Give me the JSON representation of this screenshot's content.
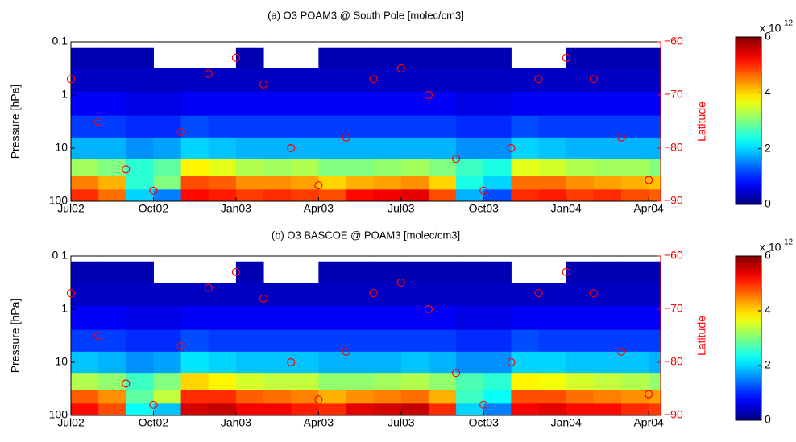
{
  "chart_data": [
    {
      "type": "heatmap",
      "title": "(a) O3 POAM3 @ South Pole [molec/cm3]",
      "y_label": "Pressure [hPa]",
      "y2_label": "Latitude",
      "x": [
        "Jul02",
        "Aug02",
        "Sep02",
        "Oct02",
        "Nov02",
        "Dec02",
        "Jan03",
        "Feb03",
        "Mar03",
        "Apr03",
        "May03",
        "Jun03",
        "Jul03",
        "Aug03",
        "Sep03",
        "Oct03",
        "Nov03",
        "Dec03",
        "Jan04",
        "Feb04",
        "Mar04",
        "Apr04"
      ],
      "xticks": [
        "Jul02",
        "Oct02",
        "Jan03",
        "Apr03",
        "Jul03",
        "Oct03",
        "Jan04",
        "Apr04"
      ],
      "ylim": [
        0.1,
        100
      ],
      "y_reversed": true,
      "log_y": true,
      "yticks": [
        0.1,
        1,
        10,
        100
      ],
      "y2lim": [
        -90,
        -60
      ],
      "y2ticks": [
        {
          "value": -90,
          "label": "−90"
        },
        {
          "value": -80,
          "label": "−80"
        },
        {
          "value": -70,
          "label": "−70"
        },
        {
          "value": -60,
          "label": "−60"
        }
      ],
      "levels": [
        0.2,
        0.5,
        1.5,
        4,
        10,
        25,
        45,
        80
      ],
      "z": [
        [
          0.3,
          0.3,
          0.3,
          null,
          null,
          null,
          0.3,
          null,
          null,
          0.3,
          0.3,
          0.3,
          0.3,
          0.3,
          0.3,
          0.3,
          null,
          null,
          0.3,
          0.3,
          0.3,
          0.3
        ],
        [
          0.4,
          0.4,
          0.4,
          0.4,
          0.4,
          0.4,
          0.4,
          0.4,
          0.4,
          0.4,
          0.4,
          0.4,
          0.4,
          0.4,
          0.4,
          0.4,
          0.4,
          0.4,
          0.4,
          0.4,
          0.4,
          0.4
        ],
        [
          0.7,
          0.7,
          0.6,
          0.6,
          0.7,
          0.7,
          0.7,
          0.7,
          0.7,
          0.7,
          0.7,
          0.7,
          0.7,
          0.7,
          0.6,
          0.6,
          0.7,
          0.7,
          0.7,
          0.7,
          0.7,
          0.7
        ],
        [
          1.1,
          1.1,
          1.0,
          1.0,
          1.2,
          1.1,
          1.1,
          1.1,
          1.1,
          1.1,
          1.1,
          1.1,
          1.1,
          1.1,
          1.0,
          1.0,
          1.2,
          1.1,
          1.1,
          1.1,
          1.1,
          1.1
        ],
        [
          1.8,
          1.8,
          1.6,
          1.7,
          2.0,
          1.9,
          1.8,
          1.8,
          1.8,
          1.8,
          1.8,
          1.8,
          1.8,
          1.8,
          1.6,
          1.6,
          2.0,
          1.9,
          1.8,
          1.8,
          1.8,
          1.8
        ],
        [
          3.2,
          3.0,
          2.5,
          2.8,
          3.8,
          3.6,
          3.3,
          3.2,
          3.3,
          3.0,
          3.0,
          3.1,
          3.2,
          3.0,
          2.6,
          2.4,
          3.6,
          3.5,
          3.3,
          3.2,
          3.2,
          3.0
        ],
        [
          4.5,
          4.2,
          2.5,
          3.0,
          4.8,
          4.7,
          4.4,
          4.4,
          4.3,
          4.0,
          4.2,
          4.3,
          4.4,
          4.0,
          2.4,
          2.0,
          4.6,
          4.6,
          4.4,
          4.3,
          4.2,
          4.1
        ],
        [
          5.0,
          4.6,
          2.0,
          1.5,
          5.2,
          5.1,
          4.9,
          5.0,
          4.9,
          4.8,
          5.2,
          5.3,
          5.4,
          4.8,
          1.8,
          1.2,
          5.0,
          5.1,
          4.9,
          5.0,
          4.8,
          4.7
        ]
      ],
      "colormap": "jet",
      "clim": [
        0,
        6
      ],
      "cticks": [
        0,
        2,
        4,
        6
      ],
      "c_multiplier": "x 10",
      "c_exponent": "12",
      "series": [
        {
          "color": "#ff0000",
          "axis": "y2",
          "values": [
            -67,
            -75,
            -84,
            -88,
            -77,
            -66,
            -63,
            -68,
            -80,
            -87,
            -78,
            -67,
            -65,
            -70,
            -82,
            -88,
            -80,
            -67,
            -63,
            -67,
            -78,
            -86
          ]
        }
      ]
    },
    {
      "type": "heatmap",
      "title": "(b) O3 BASCOE @ POAM3 [molec/cm3]",
      "y_label": "Pressure [hPa]",
      "y2_label": "Latitude",
      "x": [
        "Jul02",
        "Aug02",
        "Sep02",
        "Oct02",
        "Nov02",
        "Dec02",
        "Jan03",
        "Feb03",
        "Mar03",
        "Apr03",
        "May03",
        "Jun03",
        "Jul03",
        "Aug03",
        "Sep03",
        "Oct03",
        "Nov03",
        "Dec03",
        "Jan04",
        "Feb04",
        "Mar04",
        "Apr04"
      ],
      "xticks": [
        "Jul02",
        "Oct02",
        "Jan03",
        "Apr03",
        "Jul03",
        "Oct03",
        "Jan04",
        "Apr04"
      ],
      "ylim": [
        0.1,
        100
      ],
      "y_reversed": true,
      "log_y": true,
      "yticks": [
        0.1,
        1,
        10,
        100
      ],
      "y2lim": [
        -90,
        -60
      ],
      "y2ticks": [
        {
          "value": -90,
          "label": "−90"
        },
        {
          "value": -80,
          "label": "−80"
        },
        {
          "value": -70,
          "label": "−70"
        },
        {
          "value": -60,
          "label": "−60"
        }
      ],
      "levels": [
        0.2,
        0.5,
        1.5,
        4,
        10,
        25,
        45,
        80
      ],
      "z": [
        [
          0.3,
          0.3,
          0.3,
          null,
          null,
          null,
          0.3,
          null,
          null,
          0.3,
          0.3,
          0.3,
          0.3,
          0.3,
          0.3,
          0.3,
          null,
          null,
          0.3,
          0.3,
          0.3,
          0.3
        ],
        [
          0.4,
          0.4,
          0.4,
          0.4,
          0.4,
          0.4,
          0.4,
          0.4,
          0.4,
          0.4,
          0.4,
          0.4,
          0.4,
          0.4,
          0.4,
          0.4,
          0.4,
          0.4,
          0.4,
          0.4,
          0.4,
          0.4
        ],
        [
          0.7,
          0.7,
          0.6,
          0.6,
          0.7,
          0.7,
          0.7,
          0.7,
          0.7,
          0.7,
          0.7,
          0.7,
          0.7,
          0.7,
          0.6,
          0.6,
          0.7,
          0.7,
          0.7,
          0.7,
          0.7,
          0.7
        ],
        [
          1.1,
          1.1,
          1.0,
          1.0,
          1.2,
          1.1,
          1.1,
          1.1,
          1.1,
          1.1,
          1.1,
          1.1,
          1.1,
          1.1,
          1.0,
          1.0,
          1.2,
          1.1,
          1.1,
          1.1,
          1.1,
          1.1
        ],
        [
          1.9,
          1.8,
          1.6,
          1.7,
          2.1,
          2.0,
          1.9,
          1.9,
          1.9,
          1.8,
          1.8,
          1.8,
          1.9,
          1.8,
          1.6,
          1.6,
          2.0,
          2.0,
          1.9,
          1.9,
          1.9,
          1.8
        ],
        [
          3.3,
          3.1,
          2.6,
          3.0,
          4.0,
          3.8,
          3.5,
          3.4,
          3.4,
          3.1,
          3.1,
          3.2,
          3.3,
          3.1,
          2.7,
          2.5,
          3.8,
          3.7,
          3.5,
          3.4,
          3.3,
          3.1
        ],
        [
          4.7,
          4.4,
          2.8,
          3.4,
          5.0,
          5.0,
          4.7,
          4.6,
          4.5,
          4.2,
          4.4,
          4.5,
          4.6,
          4.2,
          2.6,
          2.3,
          4.8,
          4.8,
          4.6,
          4.5,
          4.4,
          4.3
        ],
        [
          5.2,
          4.8,
          2.3,
          1.9,
          5.5,
          5.6,
          5.3,
          5.3,
          5.1,
          5.0,
          5.4,
          5.5,
          5.6,
          5.0,
          2.0,
          1.5,
          5.3,
          5.4,
          5.2,
          5.2,
          5.0,
          4.9
        ]
      ],
      "colormap": "jet",
      "clim": [
        0,
        6
      ],
      "cticks": [
        0,
        2,
        4,
        6
      ],
      "c_multiplier": "x 10",
      "c_exponent": "12",
      "series": [
        {
          "color": "#ff0000",
          "axis": "y2",
          "values": [
            -67,
            -75,
            -84,
            -88,
            -77,
            -66,
            -63,
            -68,
            -80,
            -87,
            -78,
            -67,
            -65,
            -70,
            -82,
            -88,
            -80,
            -67,
            -63,
            -67,
            -78,
            -86
          ]
        }
      ]
    }
  ]
}
